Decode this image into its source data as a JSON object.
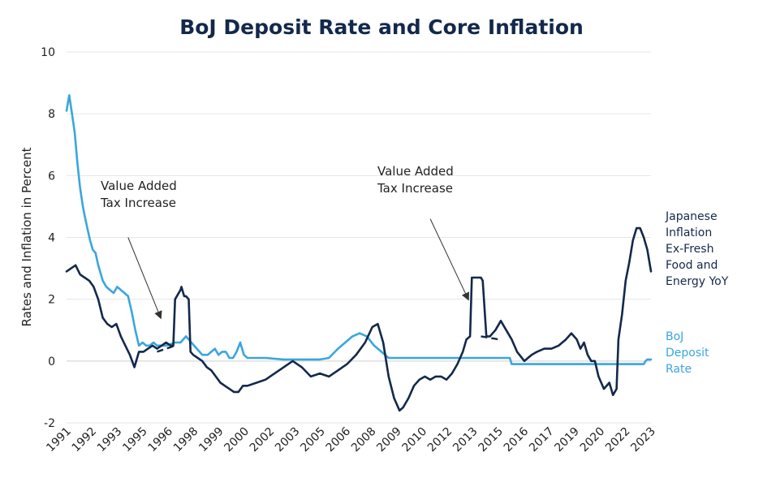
{
  "chart_data": {
    "type": "line",
    "title": "BoJ Deposit Rate and Core Inflation",
    "ylabel": "Rates and Inflation in Percent",
    "xlabel": "",
    "ylim": [
      -2,
      10
    ],
    "yticks": [
      -2,
      0,
      2,
      4,
      6,
      8,
      10
    ],
    "xlim": [
      1991.0,
      2023.3
    ],
    "xtick_labels": [
      "1991",
      "1992",
      "1993",
      "1995",
      "1996",
      "1998",
      "1999",
      "2000",
      "2002",
      "2003",
      "2005",
      "2006",
      "2008",
      "2009",
      "2010",
      "2012",
      "2013",
      "2015",
      "2016",
      "2017",
      "2019",
      "2020",
      "2022",
      "2023"
    ],
    "grid": "horizontal",
    "series": [
      {
        "name": "Japanese Inflation Ex-Fresh Food and Energy YoY",
        "legend_lines": [
          "Japanese",
          "Inflation",
          "Ex-Fresh",
          "Food and",
          "Energy YoY"
        ],
        "color": "#13294b",
        "x": [
          1991.0,
          1991.25,
          1991.5,
          1991.75,
          1992.0,
          1992.25,
          1992.5,
          1992.75,
          1993.0,
          1993.25,
          1993.5,
          1993.75,
          1994.0,
          1994.25,
          1994.5,
          1994.75,
          1995.0,
          1995.25,
          1995.5,
          1995.75,
          1996.0,
          1996.25,
          1996.5,
          1996.75,
          1996.9,
          1997.0,
          1997.3,
          1997.35,
          1997.5,
          1997.6,
          1997.75,
          1997.85,
          1998.0,
          1998.25,
          1998.5,
          1998.75,
          1999.0,
          1999.25,
          1999.5,
          1999.75,
          2000.0,
          2000.25,
          2000.5,
          2000.75,
          2001.0,
          2001.5,
          2002.0,
          2002.5,
          2003.0,
          2003.5,
          2004.0,
          2004.5,
          2005.0,
          2005.5,
          2006.0,
          2006.5,
          2007.0,
          2007.5,
          2007.9,
          2008.2,
          2008.5,
          2008.8,
          2009.1,
          2009.4,
          2009.6,
          2009.9,
          2010.2,
          2010.5,
          2010.8,
          2011.1,
          2011.4,
          2011.7,
          2012.0,
          2012.3,
          2012.6,
          2012.9,
          2013.1,
          2013.3,
          2013.4,
          2013.9,
          2014.0,
          2014.2,
          2014.4,
          2014.7,
          2015.0,
          2015.3,
          2015.6,
          2015.9,
          2016.3,
          2016.7,
          2017.0,
          2017.4,
          2017.8,
          2018.2,
          2018.6,
          2018.9,
          2019.2,
          2019.4,
          2019.6,
          2019.8,
          2020.0,
          2020.2,
          2020.4,
          2020.7,
          2021.0,
          2021.2,
          2021.4,
          2021.5,
          2021.7,
          2021.9,
          2022.1,
          2022.3,
          2022.5,
          2022.7,
          2022.9,
          2023.1,
          2023.3
        ],
        "values": [
          2.9,
          3.0,
          3.1,
          2.8,
          2.7,
          2.6,
          2.4,
          2.0,
          1.4,
          1.2,
          1.1,
          1.2,
          0.8,
          0.5,
          0.2,
          -0.2,
          0.3,
          0.3,
          0.4,
          0.5,
          0.4,
          0.5,
          0.6,
          0.5,
          0.5,
          2.0,
          2.3,
          2.4,
          2.1,
          2.1,
          2.0,
          0.3,
          0.2,
          0.1,
          0.0,
          -0.2,
          -0.3,
          -0.5,
          -0.7,
          -0.8,
          -0.9,
          -1.0,
          -1.0,
          -0.8,
          -0.8,
          -0.7,
          -0.6,
          -0.4,
          -0.2,
          0.0,
          -0.2,
          -0.5,
          -0.4,
          -0.5,
          -0.3,
          -0.1,
          0.2,
          0.6,
          1.1,
          1.2,
          0.6,
          -0.5,
          -1.2,
          -1.6,
          -1.5,
          -1.2,
          -0.8,
          -0.6,
          -0.5,
          -0.6,
          -0.5,
          -0.5,
          -0.6,
          -0.4,
          -0.1,
          0.3,
          0.7,
          0.8,
          2.7,
          2.7,
          2.6,
          0.8,
          0.8,
          1.0,
          1.3,
          1.0,
          0.7,
          0.3,
          0.0,
          0.2,
          0.3,
          0.4,
          0.4,
          0.5,
          0.7,
          0.9,
          0.7,
          0.4,
          0.6,
          0.2,
          0.0,
          0.0,
          -0.5,
          -0.9,
          -0.7,
          -1.1,
          -0.9,
          0.7,
          1.5,
          2.6,
          3.2,
          3.9,
          4.3,
          4.3,
          4.0,
          3.6,
          2.9
        ],
        "dashed_segments": [
          {
            "x": [
              1996.0,
              1997.0
            ],
            "values": [
              0.3,
              0.5
            ]
          },
          {
            "x": [
              2013.9,
              2014.9
            ],
            "values": [
              0.8,
              0.7
            ]
          }
        ]
      },
      {
        "name": "BoJ Deposit Rate",
        "legend_lines": [
          "BoJ",
          "Deposit",
          "Rate"
        ],
        "color": "#3aa6dd",
        "x": [
          1991.0,
          1991.15,
          1991.3,
          1991.45,
          1991.6,
          1991.75,
          1991.9,
          1992.0,
          1992.15,
          1992.3,
          1992.45,
          1992.6,
          1992.75,
          1992.9,
          1993.0,
          1993.2,
          1993.4,
          1993.6,
          1993.8,
          1994.0,
          1994.2,
          1994.4,
          1994.6,
          1994.8,
          1995.0,
          1995.2,
          1995.4,
          1995.6,
          1995.8,
          1996.0,
          1996.5,
          1997.0,
          1997.3,
          1997.6,
          1997.9,
          1998.2,
          1998.5,
          1998.8,
          1999.0,
          1999.2,
          1999.4,
          1999.6,
          1999.8,
          2000.0,
          2000.2,
          2000.4,
          2000.6,
          2000.8,
          2001.0,
          2001.5,
          2002.0,
          2003.0,
          2004.0,
          2005.0,
          2005.5,
          2006.0,
          2006.4,
          2006.8,
          2007.2,
          2007.6,
          2008.0,
          2008.4,
          2008.8,
          2009.0,
          2010.0,
          2011.0,
          2012.0,
          2013.0,
          2014.0,
          2015.0,
          2015.5,
          2015.6,
          2016.0,
          2017.0,
          2018.0,
          2019.0,
          2020.0,
          2021.0,
          2022.0,
          2022.9,
          2023.0,
          2023.1,
          2023.3
        ],
        "values": [
          8.1,
          8.6,
          8.0,
          7.4,
          6.4,
          5.6,
          5.0,
          4.7,
          4.3,
          3.9,
          3.6,
          3.5,
          3.1,
          2.8,
          2.6,
          2.4,
          2.3,
          2.2,
          2.4,
          2.3,
          2.2,
          2.1,
          1.6,
          1.0,
          0.5,
          0.6,
          0.5,
          0.5,
          0.6,
          0.5,
          0.5,
          0.6,
          0.6,
          0.8,
          0.6,
          0.4,
          0.2,
          0.2,
          0.3,
          0.4,
          0.2,
          0.3,
          0.3,
          0.1,
          0.1,
          0.3,
          0.6,
          0.2,
          0.1,
          0.1,
          0.1,
          0.05,
          0.05,
          0.05,
          0.1,
          0.4,
          0.6,
          0.8,
          0.9,
          0.8,
          0.5,
          0.3,
          0.1,
          0.1,
          0.1,
          0.1,
          0.1,
          0.1,
          0.1,
          0.1,
          0.1,
          -0.1,
          -0.1,
          -0.1,
          -0.1,
          -0.1,
          -0.1,
          -0.1,
          -0.1,
          -0.1,
          0.0,
          0.05,
          0.05
        ]
      }
    ],
    "annotations": [
      {
        "lines": [
          "Value Added",
          "Tax Increase"
        ],
        "arrow_from": [
          1994.4,
          4.0
        ],
        "arrow_to": [
          1996.2,
          1.4
        ]
      },
      {
        "lines": [
          "Value Added",
          "Tax Increase"
        ],
        "arrow_from": [
          2011.1,
          4.6
        ],
        "arrow_to": [
          2013.2,
          2.0
        ]
      }
    ]
  }
}
